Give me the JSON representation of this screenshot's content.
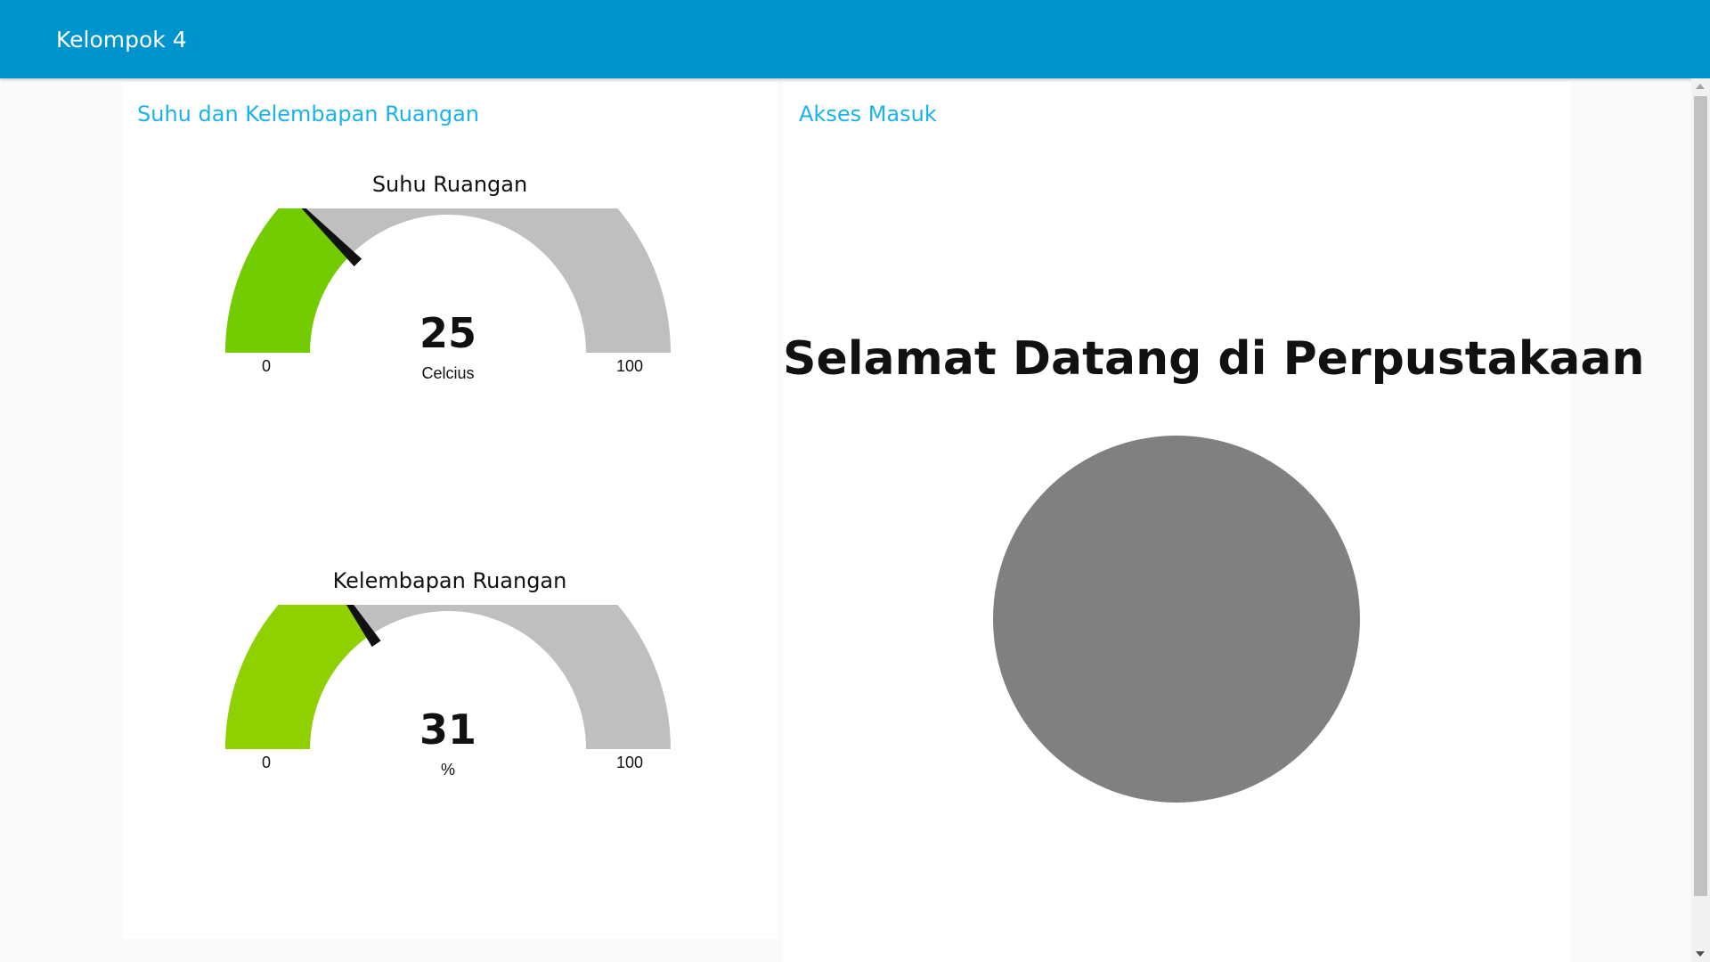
{
  "toolbar": {
    "title": "Kelompok 4"
  },
  "left_group": {
    "title": "Suhu dan Kelembapan Ruangan",
    "gauges": [
      {
        "title": "Suhu Ruangan",
        "value": 25,
        "units": "Celcius",
        "min": 0,
        "max": 100,
        "min_label": "0",
        "max_label": "100",
        "fill_color": "#73cc00"
      },
      {
        "title": "Kelembapan Ruangan",
        "value": 31,
        "units": "%",
        "min": 0,
        "max": 100,
        "min_label": "0",
        "max_label": "100",
        "fill_color": "#8fd100"
      }
    ]
  },
  "right_group": {
    "title": "Akses Masuk",
    "welcome_text": "Selamat Datang di Perpustakaan",
    "led_color": "#808080"
  },
  "colors": {
    "toolbar": "#0094ce",
    "group_title": "#1bb2ec",
    "gauge_track": "#bfbfbf",
    "needle": "#111111"
  }
}
